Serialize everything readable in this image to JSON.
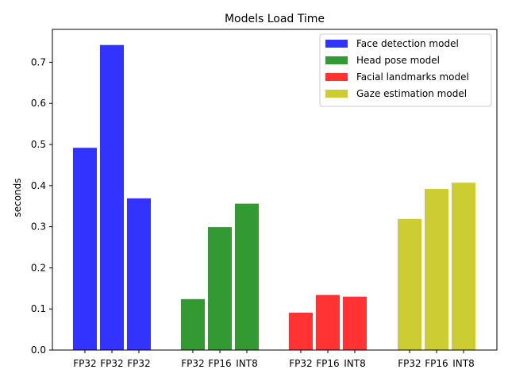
{
  "chart_data": {
    "type": "bar",
    "title": "Models Load Time",
    "xlabel": "",
    "ylabel": "seconds",
    "ylim": [
      0,
      0.78
    ],
    "yticks": [
      "0.0",
      "0.1",
      "0.2",
      "0.3",
      "0.4",
      "0.5",
      "0.6",
      "0.7"
    ],
    "grid": false,
    "legend_position": "top-right",
    "series": [
      {
        "name": "Face detection model",
        "color": "#3333ff",
        "categories": [
          "FP32",
          "FP32",
          "FP32"
        ],
        "values": [
          0.492,
          0.742,
          0.369
        ]
      },
      {
        "name": "Head pose model",
        "color": "#339933",
        "categories": [
          "FP32",
          "FP16",
          "INT8"
        ],
        "values": [
          0.124,
          0.299,
          0.356
        ]
      },
      {
        "name": "Facial landmarks model",
        "color": "#ff3333",
        "categories": [
          "FP32",
          "FP16",
          "INT8"
        ],
        "values": [
          0.091,
          0.134,
          0.13
        ]
      },
      {
        "name": "Gaze estimation model",
        "color": "#cccc33",
        "categories": [
          "FP32",
          "FP16",
          "INT8"
        ],
        "values": [
          0.319,
          0.392,
          0.407
        ]
      }
    ]
  }
}
